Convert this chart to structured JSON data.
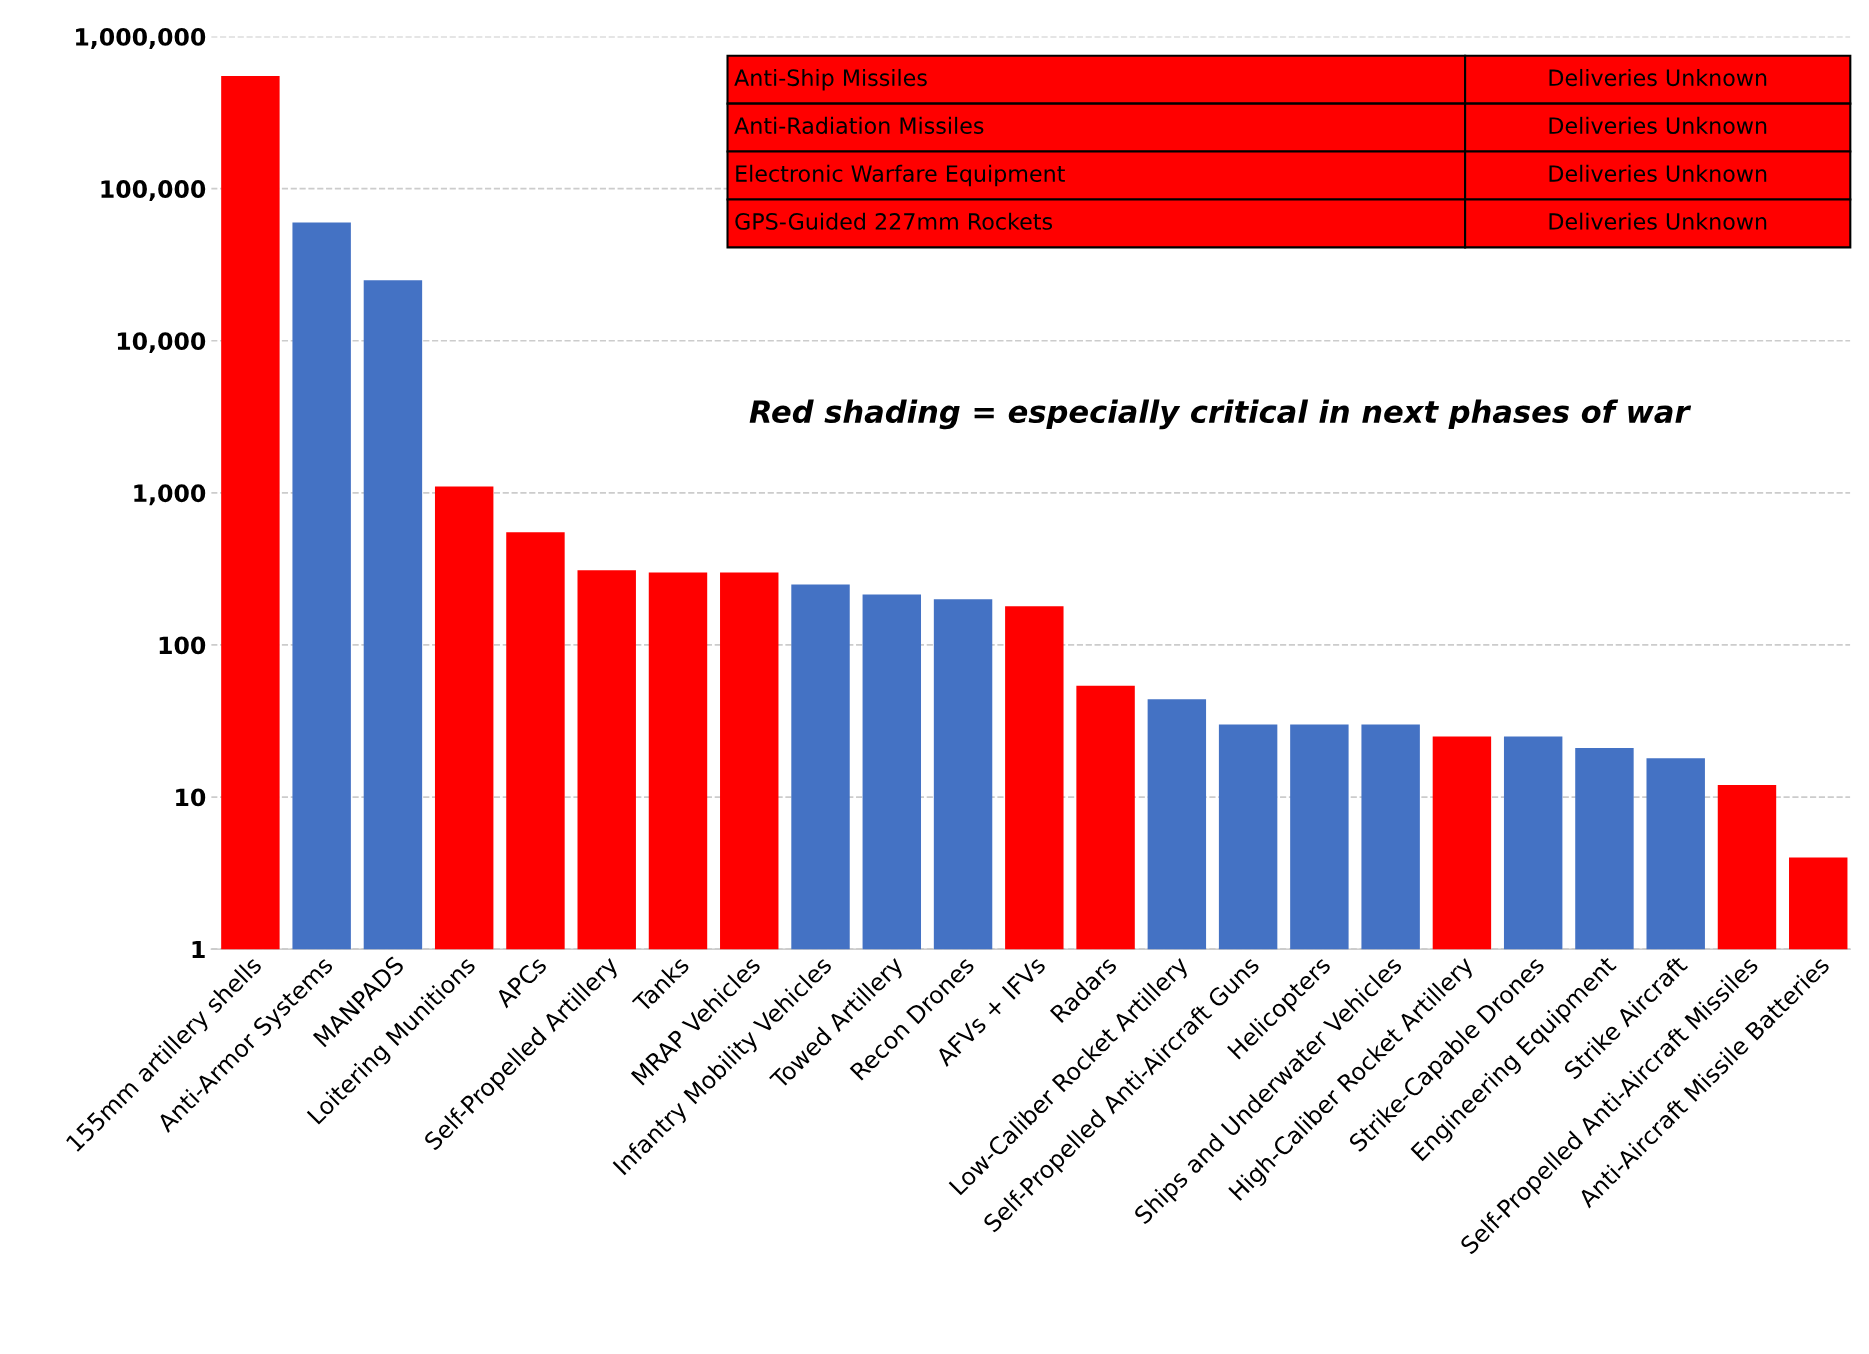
{
  "chart_data": {
    "type": "bar",
    "categories": [
      "155mm artillery shells",
      "Anti-Armor Systems",
      "MANPADS",
      "Loitering Munitions",
      "APCs",
      "Self-Propelled Artillery",
      "Tanks",
      "MRAP Vehicles",
      "Infantry Mobility Vehicles",
      "Towed Artillery",
      "Recon Drones",
      "AFVs + IFVs",
      "Radars",
      "Low-Caliber Rocket Artillery",
      "Self-Propelled Anti-Aircraft Guns",
      "Helicopters",
      "Ships and Underwater Vehicles",
      "High-Caliber Rocket Artillery",
      "Strike-Capable Drones",
      "Engineering Equipment",
      "Strike Aircraft",
      "Self-Propelled Anti-Aircraft Missiles",
      "Anti-Aircraft Missile Batteries"
    ],
    "values": [
      550000,
      60000,
      25000,
      1100,
      550,
      310,
      300,
      300,
      250,
      215,
      200,
      180,
      54,
      44,
      30,
      30,
      30,
      25,
      25,
      21,
      18,
      12,
      4
    ],
    "colors": [
      "#ff0000",
      "#4472c4",
      "#4472c4",
      "#ff0000",
      "#ff0000",
      "#ff0000",
      "#ff0000",
      "#ff0000",
      "#4472c4",
      "#4472c4",
      "#4472c4",
      "#ff0000",
      "#ff0000",
      "#4472c4",
      "#4472c4",
      "#4472c4",
      "#4472c4",
      "#ff0000",
      "#4472c4",
      "#4472c4",
      "#4472c4",
      "#ff0000",
      "#ff0000"
    ],
    "log": "y",
    "ylim": [
      1,
      1000000
    ],
    "yticks": [
      {
        "value": 1,
        "label": "1"
      },
      {
        "value": 10,
        "label": "10"
      },
      {
        "value": 100,
        "label": "100"
      },
      {
        "value": 1000,
        "label": "1,000"
      },
      {
        "value": 10000,
        "label": "10,000"
      },
      {
        "value": 100000,
        "label": "100,000"
      },
      {
        "value": 1000000,
        "label": "1,000,000"
      }
    ],
    "grid": "y",
    "annotations": [
      "Red shading = especially critical in next phases of war",
      "Anti-Ship Missiles",
      "Deliveries Unknown",
      "Anti-Radiation Missiles",
      "Deliveries Unknown",
      "Electronic Warfare Equipment",
      "Deliveries Unknown",
      "GPS-Guided 227mm Rockets",
      "Deliveries Unknown"
    ]
  }
}
